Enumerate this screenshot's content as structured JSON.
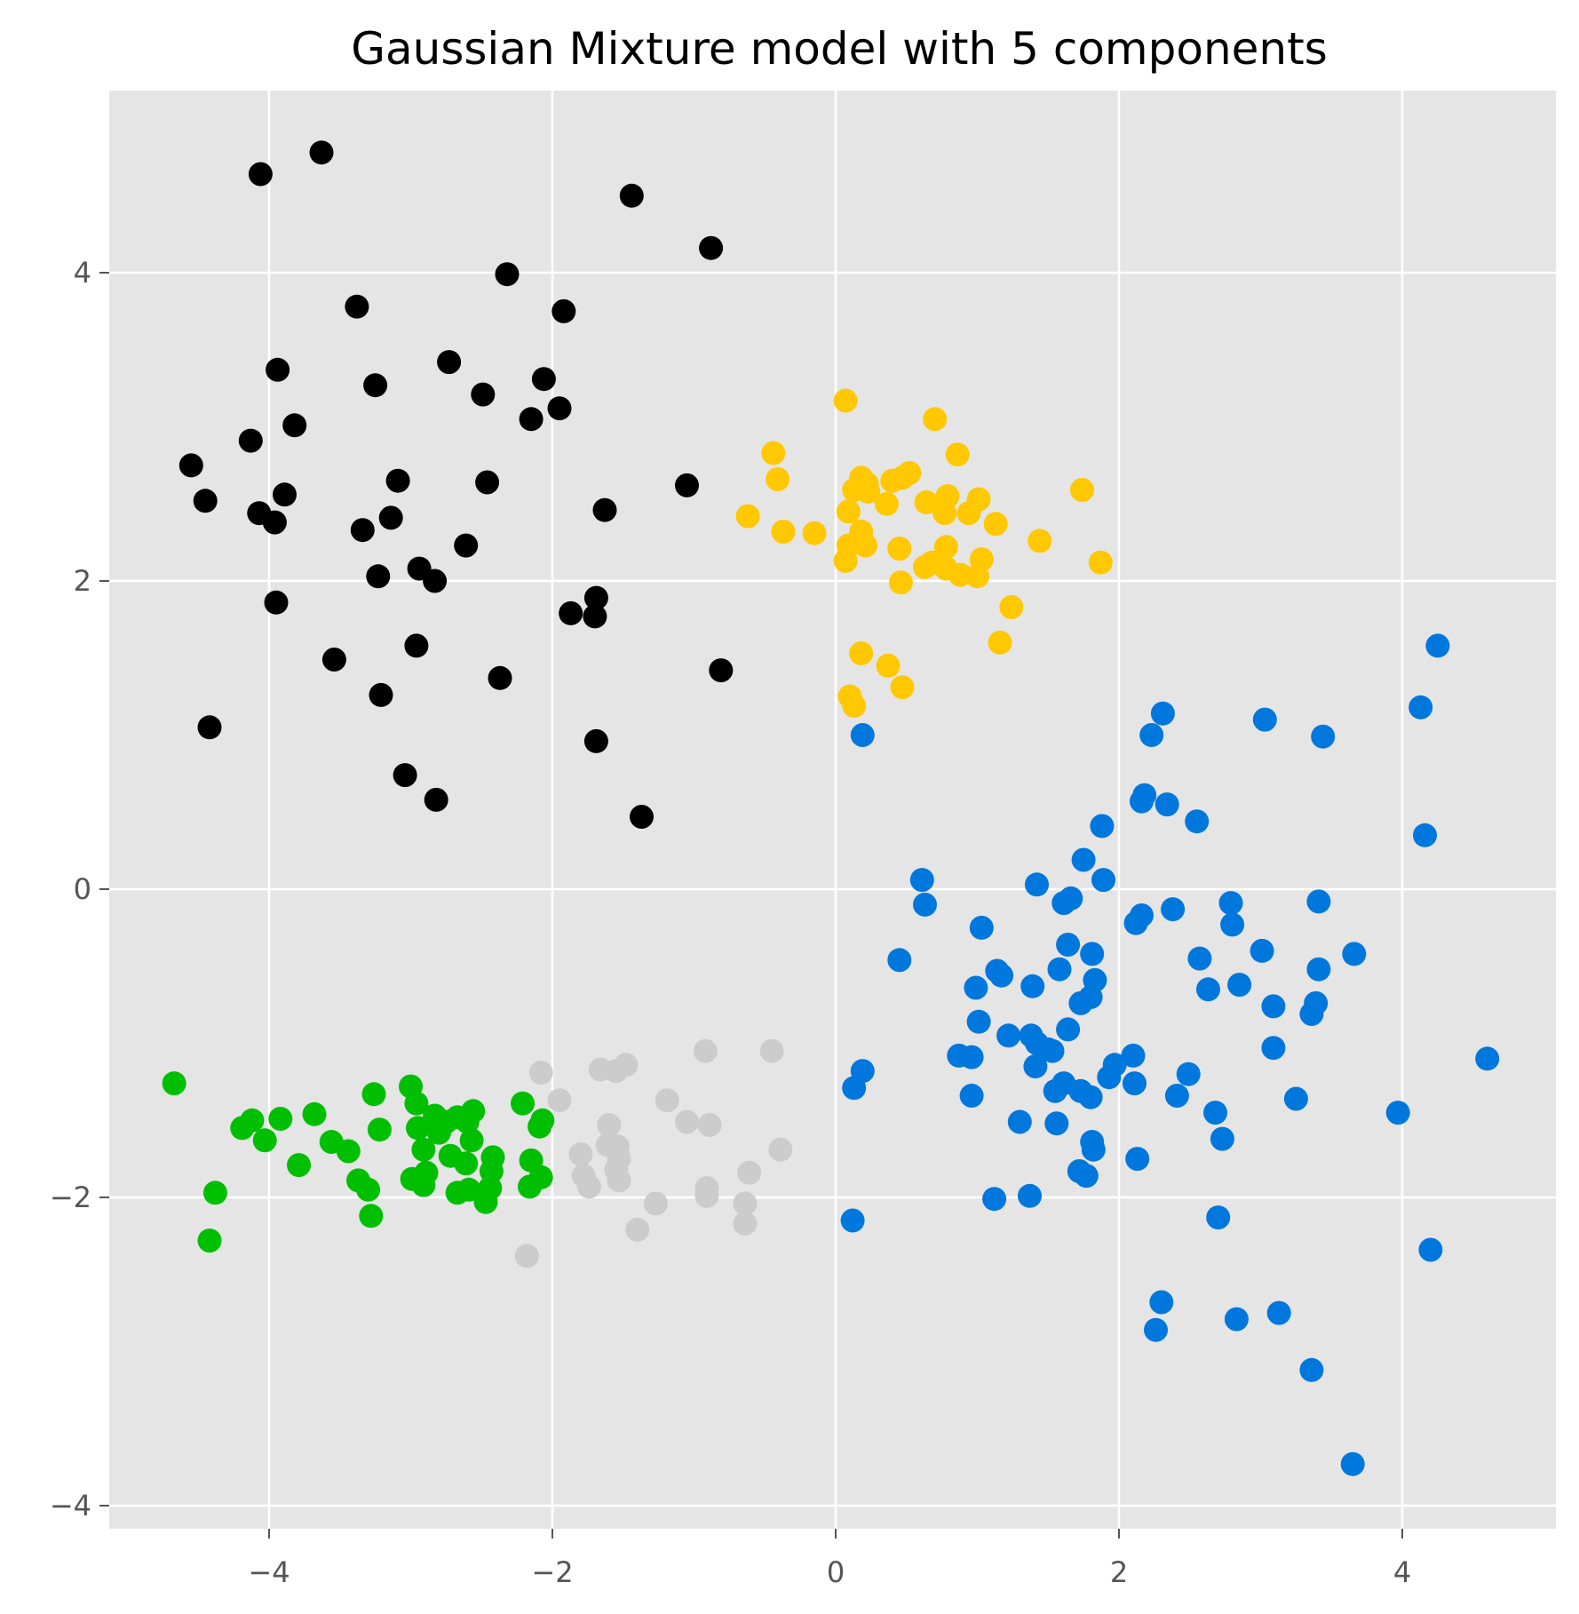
{
  "chart_data": {
    "type": "scatter",
    "title": "Gaussian Mixture model with 5 components",
    "xlabel": "",
    "ylabel": "",
    "xlim": [
      -5.1,
      5.1
    ],
    "ylim": [
      -4.15,
      5.15
    ],
    "xticks": [
      -4,
      -2,
      0,
      2,
      4
    ],
    "yticks": [
      -4,
      -2,
      0,
      2,
      4
    ],
    "xtick_labels": [
      "−4",
      "−2",
      "0",
      "2",
      "4"
    ],
    "ytick_labels": [
      "−4",
      "−2",
      "0",
      "2",
      "4"
    ],
    "grid": true,
    "background": "#e5e5e5",
    "legend": null,
    "series": [
      {
        "name": "component-black",
        "color": "#000000",
        "points": [
          [
            -4.06,
            4.64
          ],
          [
            -3.63,
            4.78
          ],
          [
            -1.44,
            4.5
          ],
          [
            -0.88,
            4.16
          ],
          [
            -2.32,
            3.99
          ],
          [
            -3.38,
            3.78
          ],
          [
            -1.92,
            3.75
          ],
          [
            -3.94,
            3.37
          ],
          [
            -2.73,
            3.42
          ],
          [
            -3.25,
            3.27
          ],
          [
            -2.49,
            3.21
          ],
          [
            -2.06,
            3.31
          ],
          [
            -1.95,
            3.12
          ],
          [
            -2.15,
            3.05
          ],
          [
            -3.82,
            3.01
          ],
          [
            -4.13,
            2.91
          ],
          [
            -4.55,
            2.75
          ],
          [
            -3.09,
            2.65
          ],
          [
            -2.46,
            2.64
          ],
          [
            -1.05,
            2.62
          ],
          [
            -4.45,
            2.52
          ],
          [
            -3.89,
            2.56
          ],
          [
            -4.07,
            2.44
          ],
          [
            -3.96,
            2.38
          ],
          [
            -3.14,
            2.41
          ],
          [
            -1.63,
            2.46
          ],
          [
            -3.34,
            2.33
          ],
          [
            -2.61,
            2.23
          ],
          [
            -2.94,
            2.08
          ],
          [
            -3.23,
            2.03
          ],
          [
            -2.83,
            2.0
          ],
          [
            -1.69,
            1.89
          ],
          [
            -1.87,
            1.79
          ],
          [
            -1.7,
            1.77
          ],
          [
            -3.95,
            1.86
          ],
          [
            -3.54,
            1.49
          ],
          [
            -2.96,
            1.58
          ],
          [
            -2.37,
            1.37
          ],
          [
            -0.81,
            1.42
          ],
          [
            -3.21,
            1.26
          ],
          [
            -4.42,
            1.05
          ],
          [
            -1.69,
            0.96
          ],
          [
            -3.04,
            0.74
          ],
          [
            -2.82,
            0.58
          ],
          [
            -1.37,
            0.47
          ]
        ]
      },
      {
        "name": "component-yellow",
        "color": "#ffc800",
        "points": [
          [
            0.07,
            3.17
          ],
          [
            0.7,
            3.05
          ],
          [
            -0.44,
            2.83
          ],
          [
            0.86,
            2.82
          ],
          [
            -0.41,
            2.66
          ],
          [
            0.18,
            2.67
          ],
          [
            0.22,
            2.63
          ],
          [
            0.13,
            2.59
          ],
          [
            0.4,
            2.65
          ],
          [
            0.52,
            2.7
          ],
          [
            0.47,
            2.67
          ],
          [
            1.74,
            2.59
          ],
          [
            0.23,
            2.58
          ],
          [
            -0.62,
            2.42
          ],
          [
            0.09,
            2.45
          ],
          [
            0.36,
            2.5
          ],
          [
            0.64,
            2.51
          ],
          [
            0.79,
            2.55
          ],
          [
            0.94,
            2.44
          ],
          [
            1.01,
            2.53
          ],
          [
            0.77,
            2.44
          ],
          [
            -0.37,
            2.32
          ],
          [
            -0.15,
            2.31
          ],
          [
            0.18,
            2.32
          ],
          [
            1.13,
            2.37
          ],
          [
            1.44,
            2.26
          ],
          [
            0.09,
            2.23
          ],
          [
            0.21,
            2.23
          ],
          [
            0.45,
            2.21
          ],
          [
            0.78,
            2.22
          ],
          [
            0.07,
            2.13
          ],
          [
            1.03,
            2.14
          ],
          [
            1.87,
            2.12
          ],
          [
            0.68,
            2.12
          ],
          [
            0.63,
            2.09
          ],
          [
            0.78,
            2.08
          ],
          [
            0.88,
            2.04
          ],
          [
            1.0,
            2.03
          ],
          [
            0.46,
            1.99
          ],
          [
            1.24,
            1.83
          ],
          [
            1.16,
            1.6
          ],
          [
            0.18,
            1.53
          ],
          [
            0.37,
            1.45
          ],
          [
            0.47,
            1.31
          ],
          [
            0.1,
            1.25
          ],
          [
            0.13,
            1.19
          ]
        ]
      },
      {
        "name": "component-blue",
        "color": "#0077dd",
        "points": [
          [
            4.25,
            1.58
          ],
          [
            2.31,
            1.14
          ],
          [
            3.03,
            1.1
          ],
          [
            4.13,
            1.18
          ],
          [
            0.19,
            1.0
          ],
          [
            2.23,
            1.0
          ],
          [
            3.44,
            0.99
          ],
          [
            2.18,
            0.61
          ],
          [
            2.16,
            0.57
          ],
          [
            2.34,
            0.55
          ],
          [
            2.55,
            0.44
          ],
          [
            1.88,
            0.41
          ],
          [
            4.16,
            0.35
          ],
          [
            1.75,
            0.19
          ],
          [
            0.61,
            0.06
          ],
          [
            1.42,
            0.03
          ],
          [
            1.89,
            0.06
          ],
          [
            1.66,
            -0.06
          ],
          [
            1.61,
            -0.09
          ],
          [
            0.63,
            -0.1
          ],
          [
            2.16,
            -0.17
          ],
          [
            2.12,
            -0.22
          ],
          [
            2.38,
            -0.13
          ],
          [
            2.79,
            -0.09
          ],
          [
            2.8,
            -0.23
          ],
          [
            3.41,
            -0.08
          ],
          [
            1.03,
            -0.25
          ],
          [
            1.64,
            -0.36
          ],
          [
            1.81,
            -0.42
          ],
          [
            3.01,
            -0.4
          ],
          [
            3.66,
            -0.42
          ],
          [
            0.45,
            -0.46
          ],
          [
            2.57,
            -0.45
          ],
          [
            1.14,
            -0.53
          ],
          [
            1.17,
            -0.56
          ],
          [
            1.58,
            -0.52
          ],
          [
            3.41,
            -0.52
          ],
          [
            1.83,
            -0.59
          ],
          [
            0.99,
            -0.64
          ],
          [
            1.39,
            -0.63
          ],
          [
            2.63,
            -0.65
          ],
          [
            2.85,
            -0.62
          ],
          [
            1.73,
            -0.74
          ],
          [
            1.8,
            -0.7
          ],
          [
            3.09,
            -0.76
          ],
          [
            3.39,
            -0.74
          ],
          [
            3.36,
            -0.81
          ],
          [
            1.01,
            -0.86
          ],
          [
            1.64,
            -0.91
          ],
          [
            1.22,
            -0.95
          ],
          [
            1.38,
            -0.95
          ],
          [
            1.42,
            -1.0
          ],
          [
            1.5,
            -1.04
          ],
          [
            1.53,
            -1.05
          ],
          [
            3.09,
            -1.03
          ],
          [
            4.6,
            -1.1
          ],
          [
            0.87,
            -1.08
          ],
          [
            0.96,
            -1.09
          ],
          [
            2.1,
            -1.08
          ],
          [
            1.97,
            -1.14
          ],
          [
            0.19,
            -1.18
          ],
          [
            1.41,
            -1.15
          ],
          [
            2.49,
            -1.2
          ],
          [
            1.93,
            -1.22
          ],
          [
            2.11,
            -1.26
          ],
          [
            0.13,
            -1.29
          ],
          [
            0.96,
            -1.34
          ],
          [
            1.61,
            -1.26
          ],
          [
            1.55,
            -1.31
          ],
          [
            1.73,
            -1.31
          ],
          [
            1.8,
            -1.35
          ],
          [
            2.41,
            -1.34
          ],
          [
            3.25,
            -1.36
          ],
          [
            2.68,
            -1.45
          ],
          [
            3.97,
            -1.45
          ],
          [
            1.3,
            -1.51
          ],
          [
            1.56,
            -1.52
          ],
          [
            2.73,
            -1.62
          ],
          [
            1.81,
            -1.64
          ],
          [
            1.82,
            -1.69
          ],
          [
            2.13,
            -1.75
          ],
          [
            1.72,
            -1.83
          ],
          [
            1.77,
            -1.86
          ],
          [
            1.12,
            -2.01
          ],
          [
            1.37,
            -1.99
          ],
          [
            2.7,
            -2.13
          ],
          [
            0.12,
            -2.15
          ],
          [
            4.2,
            -2.34
          ],
          [
            2.3,
            -2.68
          ],
          [
            2.26,
            -2.86
          ],
          [
            2.83,
            -2.79
          ],
          [
            3.13,
            -2.75
          ],
          [
            3.36,
            -3.12
          ],
          [
            3.65,
            -3.73
          ]
        ]
      },
      {
        "name": "component-green",
        "color": "#00bf00",
        "points": [
          [
            -4.67,
            -1.26
          ],
          [
            -3.0,
            -1.28
          ],
          [
            -3.26,
            -1.33
          ],
          [
            -2.21,
            -1.39
          ],
          [
            -2.96,
            -1.39
          ],
          [
            -2.56,
            -1.44
          ],
          [
            -3.68,
            -1.46
          ],
          [
            -2.67,
            -1.48
          ],
          [
            -2.83,
            -1.47
          ],
          [
            -2.75,
            -1.51
          ],
          [
            -3.92,
            -1.49
          ],
          [
            -2.07,
            -1.5
          ],
          [
            -4.12,
            -1.5
          ],
          [
            -2.6,
            -1.51
          ],
          [
            -2.09,
            -1.54
          ],
          [
            -4.19,
            -1.55
          ],
          [
            -3.22,
            -1.56
          ],
          [
            -2.95,
            -1.55
          ],
          [
            -2.8,
            -1.58
          ],
          [
            -2.57,
            -1.63
          ],
          [
            -4.03,
            -1.63
          ],
          [
            -3.56,
            -1.64
          ],
          [
            -3.44,
            -1.7
          ],
          [
            -2.91,
            -1.69
          ],
          [
            -2.42,
            -1.74
          ],
          [
            -2.72,
            -1.73
          ],
          [
            -2.15,
            -1.76
          ],
          [
            -2.61,
            -1.78
          ],
          [
            -3.79,
            -1.79
          ],
          [
            -2.89,
            -1.84
          ],
          [
            -2.43,
            -1.83
          ],
          [
            -2.99,
            -1.88
          ],
          [
            -3.37,
            -1.89
          ],
          [
            -2.08,
            -1.87
          ],
          [
            -2.91,
            -1.92
          ],
          [
            -3.3,
            -1.95
          ],
          [
            -2.44,
            -1.94
          ],
          [
            -2.59,
            -1.95
          ],
          [
            -2.67,
            -1.97
          ],
          [
            -2.16,
            -1.93
          ],
          [
            -4.38,
            -1.97
          ],
          [
            -2.47,
            -2.03
          ],
          [
            -3.28,
            -2.12
          ],
          [
            -4.42,
            -2.28
          ]
        ]
      },
      {
        "name": "component-gray",
        "color": "#cccccc",
        "points": [
          [
            -2.08,
            -1.19
          ],
          [
            -1.66,
            -1.17
          ],
          [
            -1.48,
            -1.14
          ],
          [
            -1.55,
            -1.18
          ],
          [
            -0.92,
            -1.05
          ],
          [
            -0.45,
            -1.05
          ],
          [
            -1.95,
            -1.37
          ],
          [
            -1.19,
            -1.37
          ],
          [
            -1.05,
            -1.51
          ],
          [
            -0.89,
            -1.53
          ],
          [
            -1.6,
            -1.53
          ],
          [
            -1.61,
            -1.66
          ],
          [
            -1.54,
            -1.67
          ],
          [
            -1.53,
            -1.75
          ],
          [
            -1.8,
            -1.72
          ],
          [
            -0.39,
            -1.69
          ],
          [
            -1.55,
            -1.82
          ],
          [
            -1.78,
            -1.86
          ],
          [
            -1.53,
            -1.89
          ],
          [
            -0.61,
            -1.84
          ],
          [
            -1.74,
            -1.93
          ],
          [
            -0.91,
            -1.94
          ],
          [
            -0.91,
            -1.99
          ],
          [
            -1.27,
            -2.04
          ],
          [
            -0.64,
            -2.04
          ],
          [
            -0.64,
            -2.17
          ],
          [
            -1.4,
            -2.21
          ],
          [
            -2.18,
            -2.38
          ]
        ]
      }
    ]
  }
}
